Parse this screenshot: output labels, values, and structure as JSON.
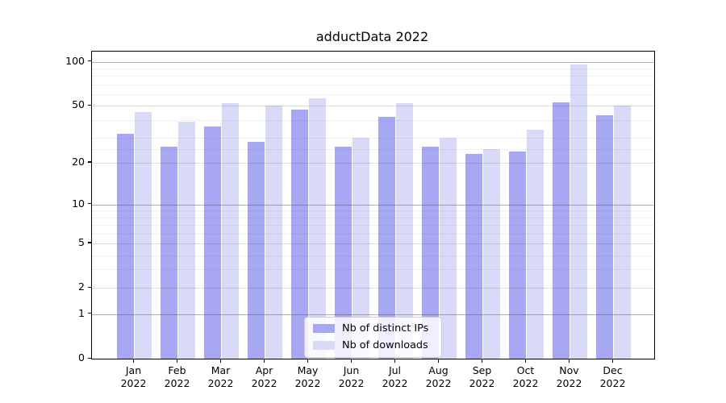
{
  "title": "adductData 2022",
  "chart_data": {
    "type": "bar",
    "title": "adductData 2022",
    "categories": [
      "Jan 2022",
      "Feb 2022",
      "Mar 2022",
      "Apr 2022",
      "May 2022",
      "Jun 2022",
      "Jul 2022",
      "Aug 2022",
      "Sep 2022",
      "Oct 2022",
      "Nov 2022",
      "Dec 2022"
    ],
    "series": [
      {
        "name": "Nb of distinct IPs",
        "color": "#a7a7f3",
        "values": [
          32,
          26,
          36,
          28,
          47,
          26,
          42,
          26,
          23,
          24,
          53,
          43
        ]
      },
      {
        "name": "Nb of downloads",
        "color": "#d9d9f8",
        "values": [
          45,
          39,
          52,
          50,
          56,
          30,
          52,
          30,
          25,
          34,
          96,
          50
        ]
      }
    ],
    "xlabel": "",
    "ylabel": "",
    "yscale": "log1p",
    "ylim": [
      0,
      118
    ],
    "y_tick_labels": [
      0,
      1,
      2,
      5,
      10,
      20,
      50,
      100
    ],
    "y_grid_strong": [
      1,
      10,
      100
    ],
    "y_grid_mid": [
      2,
      5,
      20,
      50
    ],
    "y_grid_minor": [
      3,
      4,
      6,
      7,
      8,
      9,
      25,
      30,
      40,
      60,
      70,
      80,
      90
    ],
    "grid": true,
    "legend_position": "lower center"
  }
}
